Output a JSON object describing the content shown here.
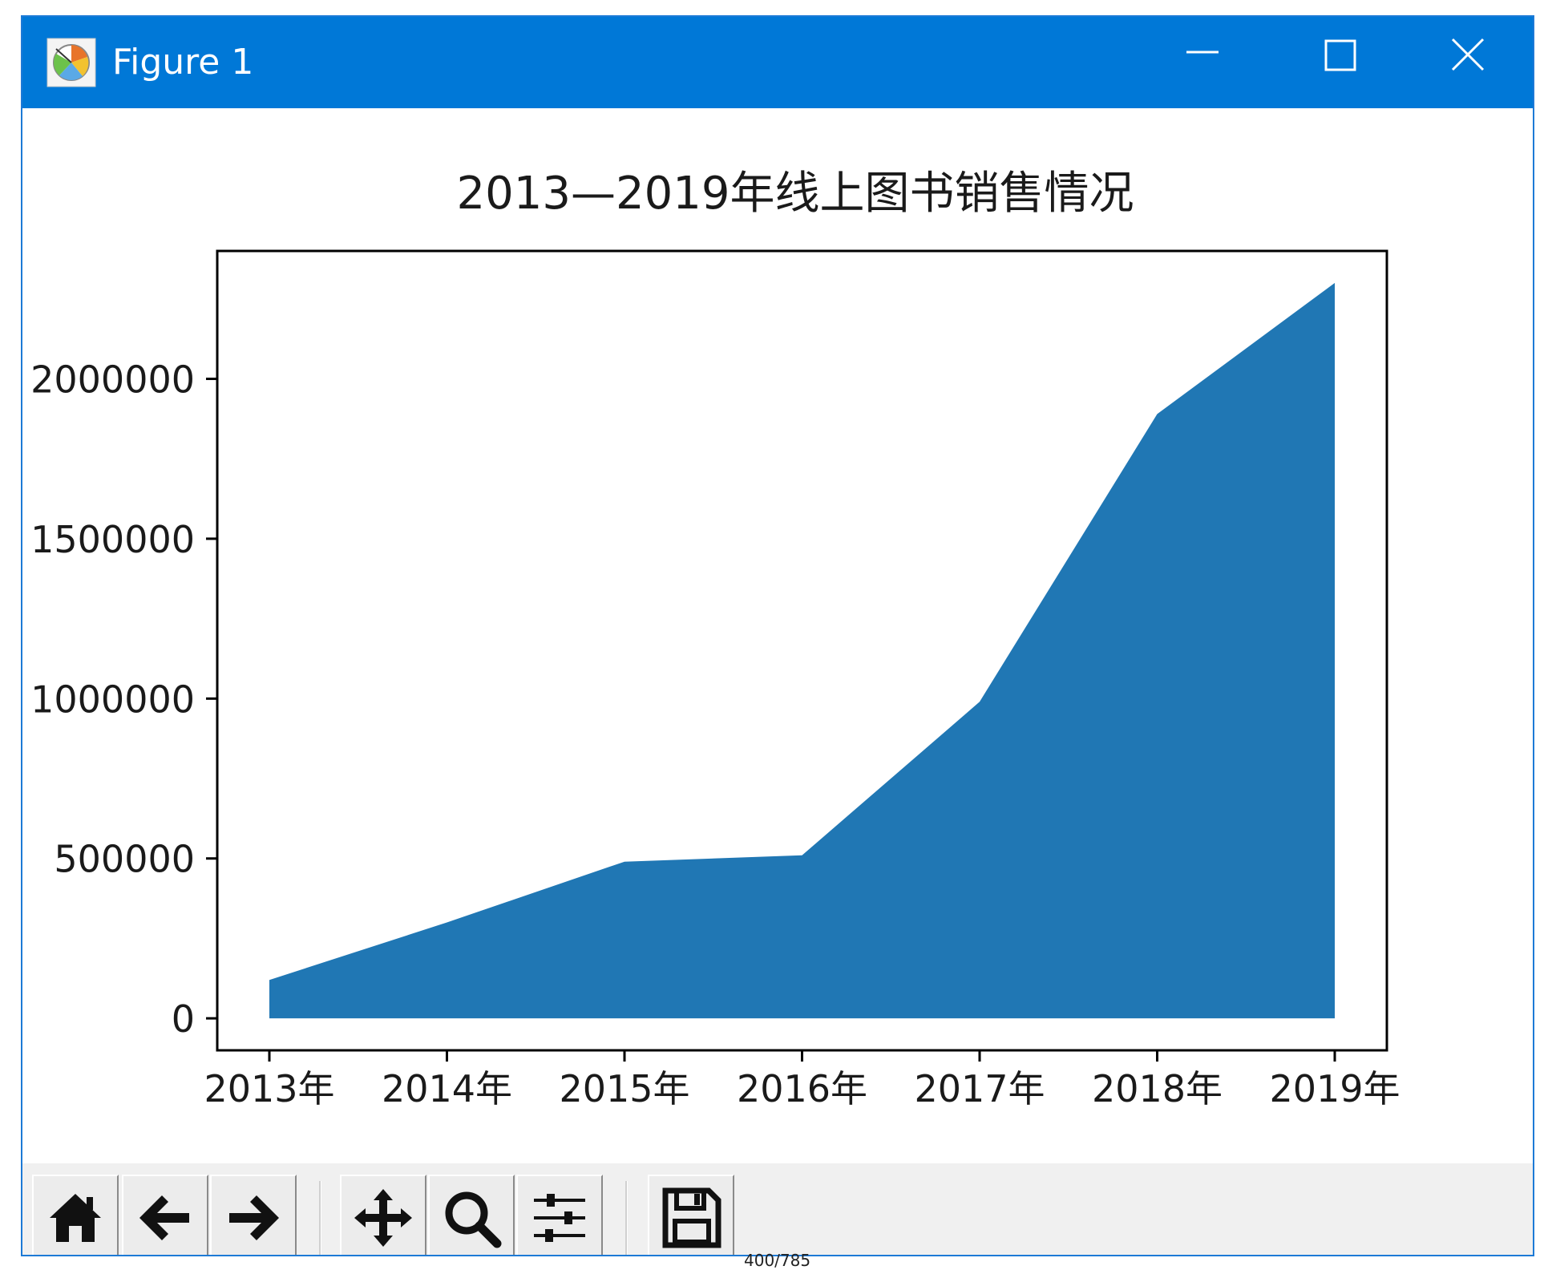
{
  "window": {
    "title": "Figure 1",
    "controls": {
      "minimize": "minimize",
      "maximize": "maximize",
      "close": "close"
    },
    "titlebar_color": "#0078d7"
  },
  "toolbar": {
    "buttons": [
      {
        "name": "home",
        "icon": "home-icon"
      },
      {
        "name": "back",
        "icon": "arrow-left-icon"
      },
      {
        "name": "forward",
        "icon": "arrow-right-icon"
      },
      {
        "name": "pan",
        "icon": "move-icon"
      },
      {
        "name": "zoom",
        "icon": "magnifier-icon"
      },
      {
        "name": "configure-subplots",
        "icon": "sliders-icon"
      },
      {
        "name": "save",
        "icon": "floppy-disk-icon"
      }
    ]
  },
  "footer_text": "400/785",
  "chart_data": {
    "type": "area",
    "title": "2013—2019年线上图书销售情况",
    "categories": [
      "2013年",
      "2014年",
      "2015年",
      "2016年",
      "2017年",
      "2018年",
      "2019年"
    ],
    "values": [
      120000,
      300000,
      490000,
      510000,
      990000,
      1890000,
      2300000
    ],
    "ylim": [
      -100000,
      2400000
    ],
    "yticks": [
      0,
      500000,
      1000000,
      1500000,
      2000000
    ],
    "ytick_labels": [
      "0",
      "500000",
      "1000000",
      "1500000",
      "2000000"
    ],
    "xlabel": "",
    "ylabel": "",
    "grid": false,
    "fill_color": "#2077b4"
  }
}
